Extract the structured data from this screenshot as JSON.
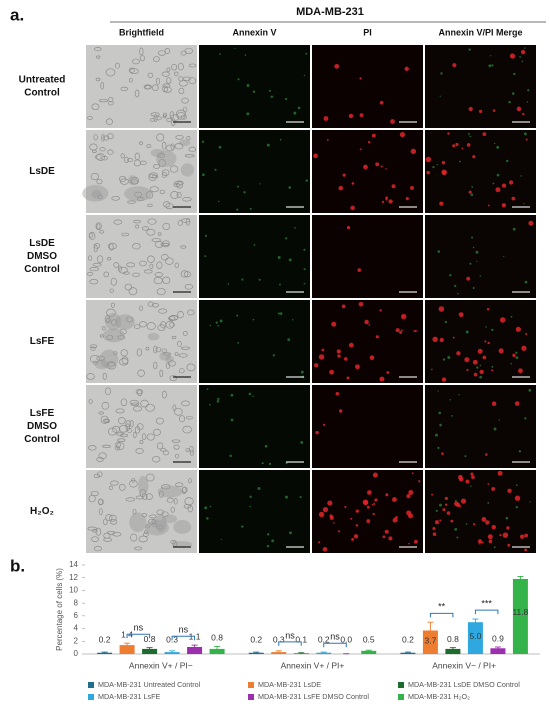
{
  "figure": {
    "panel_a": {
      "label": "a.",
      "title": "MDA-MB-231",
      "columns": [
        "Brightfield",
        "Annexin V",
        "PI",
        "Annexin V/PI Merge"
      ],
      "rows": [
        [
          "Untreated",
          "Control"
        ],
        [
          "LsDE"
        ],
        [
          "LsDE",
          "DMSO",
          "Control"
        ],
        [
          "LsFE"
        ],
        [
          "LsFE",
          "DMSO",
          "Control"
        ],
        [
          "H₂O₂"
        ]
      ]
    },
    "panel_b": {
      "label": "b."
    }
  },
  "chart_data": {
    "type": "bar",
    "y_label": "Percentage of cells (%)",
    "categories": [
      "Annexin V+ / PI−",
      "Annexin V+ / PI+",
      "Annexin V− / PI+"
    ],
    "ylim": [
      0,
      14
    ],
    "yticks": [
      0,
      2,
      4,
      6,
      8,
      10,
      12,
      14
    ],
    "grid": false,
    "series": [
      {
        "name": "MDA-MB-231 Untreated Control",
        "color": "#1f6e8c",
        "values": [
          0.2,
          0.2,
          0.2
        ],
        "value_labels": [
          "0.2",
          "0.2",
          "0.2"
        ],
        "errors": [
          0.1,
          0.1,
          0.1
        ]
      },
      {
        "name": "MDA-MB-231 LsDE",
        "color": "#ed7d31",
        "values": [
          1.4,
          0.3,
          3.7
        ],
        "value_labels": [
          "1.4",
          "0.3",
          "3.7"
        ],
        "errors": [
          0.3,
          0.2,
          1.3
        ]
      },
      {
        "name": "MDA-MB-231 LsDE DMSO Control",
        "color": "#1e6b2e",
        "values": [
          0.8,
          0.1,
          0.8
        ],
        "value_labels": [
          "0.8",
          "0.1",
          "0.8"
        ],
        "errors": [
          0.2,
          0.1,
          0.2
        ]
      },
      {
        "name": "MDA-MB-231 LsFE",
        "color": "#2ea8df",
        "values": [
          0.3,
          0.2,
          5.0
        ],
        "value_labels": [
          "0.3",
          "0.2",
          "5.0"
        ],
        "errors": [
          0.2,
          0.1,
          0.5
        ]
      },
      {
        "name": "MDA-MB-231 LsFE DMSO Control",
        "color": "#9b2fae",
        "values": [
          1.1,
          0.0,
          0.9
        ],
        "value_labels": [
          "1.1",
          "0.0",
          "0.9"
        ],
        "errors": [
          0.3,
          0.05,
          0.2
        ]
      },
      {
        "name": "MDA-MB-231 H₂O₂",
        "color": "#33b34a",
        "values": [
          0.8,
          0.5,
          11.8
        ],
        "value_labels": [
          "0.8",
          "0.5",
          "11.8"
        ],
        "errors": [
          0.4,
          0.1,
          0.4
        ]
      }
    ],
    "significance": [
      {
        "text": "ns",
        "category": 0,
        "series": [
          1,
          2
        ]
      },
      {
        "text": "ns",
        "category": 0,
        "series": [
          3,
          4
        ]
      },
      {
        "text": "ns",
        "category": 1,
        "series": [
          1,
          2
        ]
      },
      {
        "text": "ns",
        "category": 1,
        "series": [
          3,
          4
        ]
      },
      {
        "text": "**",
        "category": 2,
        "series": [
          1,
          2
        ]
      },
      {
        "text": "***",
        "category": 2,
        "series": [
          3,
          4
        ]
      }
    ],
    "legend": "bottom"
  }
}
